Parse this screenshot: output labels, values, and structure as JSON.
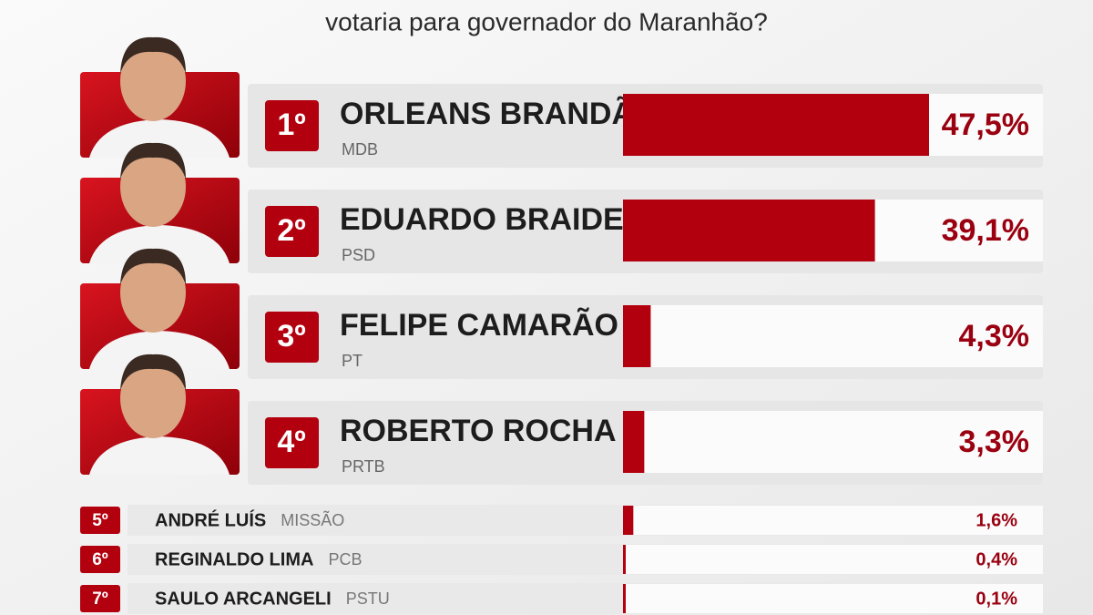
{
  "chart_data": {
    "type": "bar",
    "orientation": "horizontal",
    "title": "votaria para governador do Maranhão?",
    "ranks": [
      "1º",
      "2º",
      "3º",
      "4º",
      "5º",
      "6º",
      "7º"
    ],
    "categories": [
      "ORLEANS BRANDÃO",
      "EDUARDO BRAIDE",
      "FELIPE CAMARÃO",
      "ROBERTO ROCHA",
      "ANDRÉ LUÍS",
      "REGINALDO LIMA",
      "SAULO ARCANGELI"
    ],
    "parties": [
      "MDB",
      "PSD",
      "PT",
      "PRTB",
      "MISSÃO",
      "PCB",
      "PSTU"
    ],
    "values": [
      47.5,
      39.1,
      4.3,
      3.3,
      1.6,
      0.4,
      0.1
    ],
    "value_labels": [
      "47,5%",
      "39,1%",
      "4,3%",
      "3,3%",
      "1,6%",
      "0,4%",
      "0,1%"
    ],
    "color": "#b3000e"
  }
}
